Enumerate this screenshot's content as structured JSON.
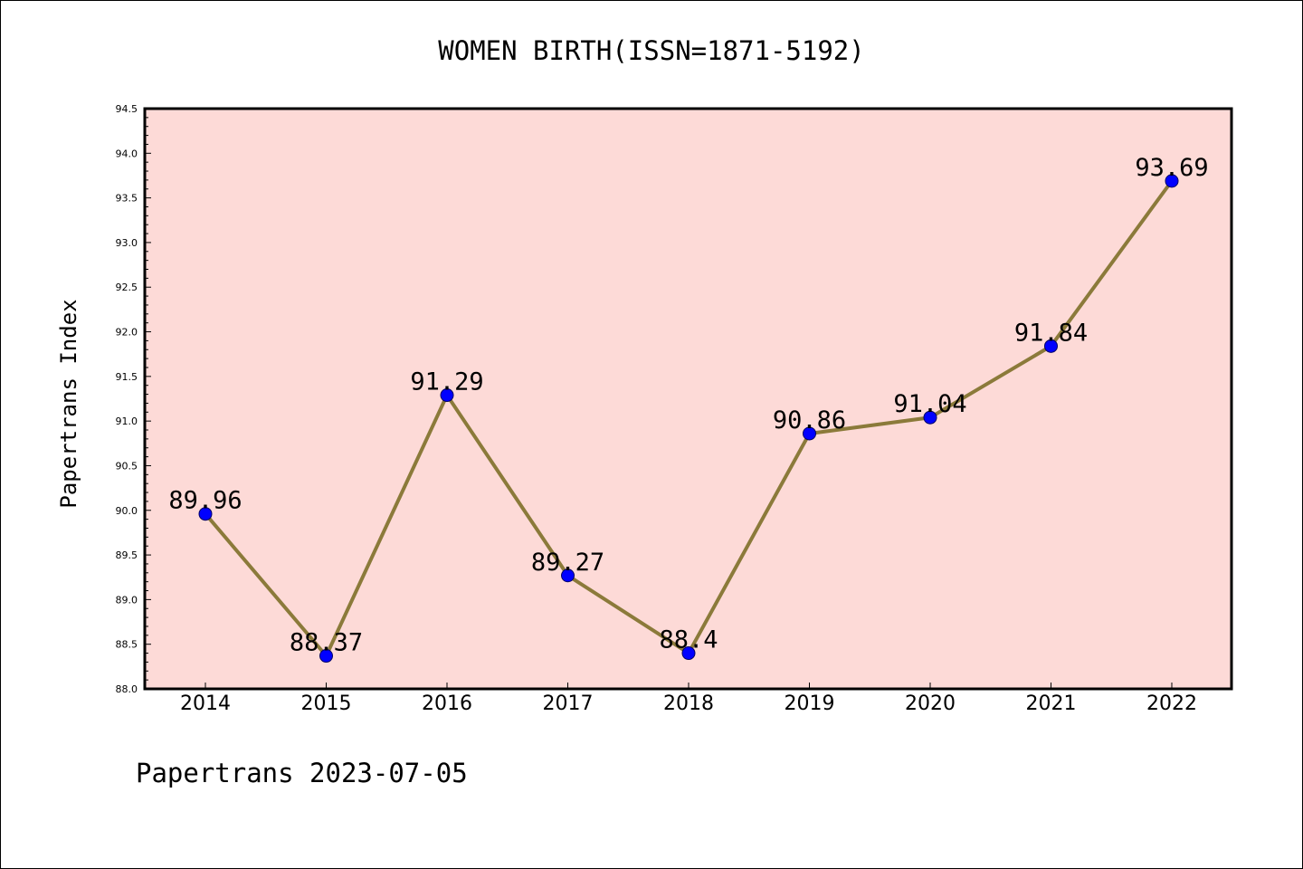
{
  "chart_data": {
    "type": "line",
    "title": "WOMEN BIRTH(ISSN=1871-5192)",
    "xlabel": "",
    "ylabel": "Papertrans Index",
    "x": [
      "2014",
      "2015",
      "2016",
      "2017",
      "2018",
      "2019",
      "2020",
      "2021",
      "2022"
    ],
    "series": [
      {
        "values": [
          89.96,
          88.37,
          91.29,
          89.27,
          88.4,
          90.86,
          91.04,
          91.84,
          93.69
        ],
        "labels": [
          "89.96",
          "88.37",
          "91.29",
          "89.27",
          "88.4",
          "90.86",
          "91.04",
          "91.84",
          "93.69"
        ]
      }
    ],
    "ylim": [
      88.0,
      94.5
    ],
    "yticks": [
      "88.0",
      "88.5",
      "89.0",
      "89.5",
      "90.0",
      "90.5",
      "91.0",
      "91.5",
      "92.0",
      "92.5",
      "93.0",
      "93.5",
      "94.0",
      "94.5"
    ],
    "grid": false,
    "colors": {
      "plot_background": "#fddad7",
      "line": "#8b7a3a",
      "marker_fill": "#0000ff",
      "marker_stroke": "#000066",
      "frame": "#000000"
    }
  },
  "footer": {
    "source": "Papertrans 2023-07-05"
  }
}
